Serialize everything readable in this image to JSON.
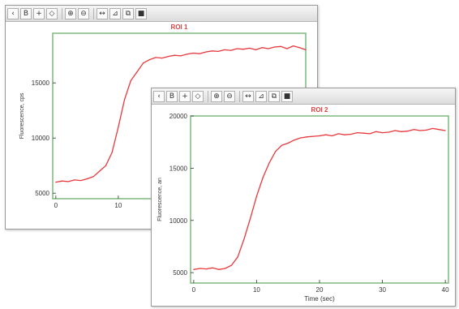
{
  "toolbar_icons": [
    "back-icon",
    "bold-icon",
    "crosshair-icon",
    "pan-icon",
    "zoom-in-icon",
    "zoom-out-icon",
    "fit-icon",
    "axes-icon",
    "copy-icon",
    "save-icon"
  ],
  "colors": {
    "series": "#e8393d",
    "title": "#e04040",
    "plot_frame": "#7fb87f",
    "axis": "#333333"
  },
  "chart_data": [
    {
      "type": "line",
      "title": "ROI 1",
      "xlabel": "",
      "ylabel": "Fluorescence, cps",
      "xlim": [
        -0.5,
        40
      ],
      "ylim": [
        4500,
        19500
      ],
      "xticks": [
        0,
        10
      ],
      "yticks": [
        5000,
        10000,
        15000
      ],
      "x": [
        0,
        1,
        2,
        3,
        4,
        5,
        6,
        7,
        8,
        9,
        10,
        11,
        12,
        13,
        14,
        15,
        16,
        17,
        18,
        19,
        20,
        21,
        22,
        23,
        24,
        25,
        26,
        27,
        28,
        29,
        30,
        31,
        32,
        33,
        34,
        35,
        36,
        37,
        38,
        39,
        40
      ],
      "y": [
        6000,
        6100,
        6050,
        6200,
        6150,
        6300,
        6500,
        7000,
        7500,
        8700,
        11000,
        13500,
        15200,
        16000,
        16800,
        17100,
        17300,
        17250,
        17400,
        17500,
        17450,
        17600,
        17700,
        17650,
        17800,
        17900,
        17850,
        18000,
        17950,
        18100,
        18050,
        18150,
        18000,
        18200,
        18100,
        18250,
        18300,
        18100,
        18350,
        18200,
        18000
      ]
    },
    {
      "type": "line",
      "title": "ROI 2",
      "xlabel": "Time (sec)",
      "ylabel": "Fluorescence, an",
      "xlim": [
        -0.5,
        40.5
      ],
      "ylim": [
        4000,
        20000
      ],
      "xticks": [
        0,
        10,
        20,
        30,
        40
      ],
      "yticks": [
        5000,
        10000,
        15000,
        20000
      ],
      "x": [
        0,
        1,
        2,
        3,
        4,
        5,
        6,
        7,
        8,
        9,
        10,
        11,
        12,
        13,
        14,
        15,
        16,
        17,
        18,
        19,
        20,
        21,
        22,
        23,
        24,
        25,
        26,
        27,
        28,
        29,
        30,
        31,
        32,
        33,
        34,
        35,
        36,
        37,
        38,
        39,
        40
      ],
      "y": [
        5300,
        5400,
        5350,
        5450,
        5300,
        5400,
        5700,
        6500,
        8200,
        10200,
        12300,
        14100,
        15500,
        16600,
        17200,
        17400,
        17700,
        17900,
        18000,
        18050,
        18100,
        18200,
        18100,
        18300,
        18200,
        18250,
        18400,
        18350,
        18300,
        18500,
        18400,
        18450,
        18600,
        18500,
        18550,
        18700,
        18600,
        18650,
        18800,
        18700,
        18600
      ]
    }
  ]
}
